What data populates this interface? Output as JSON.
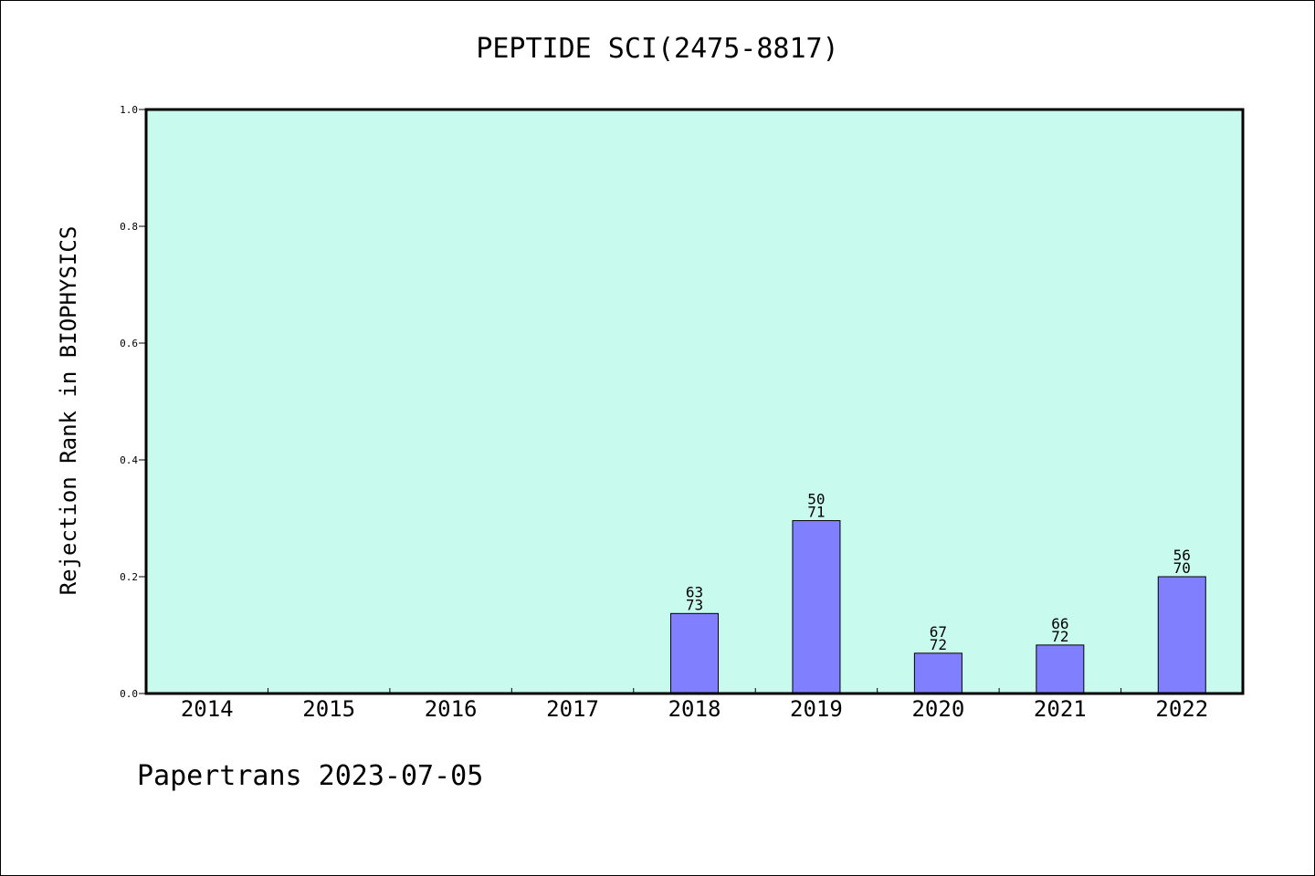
{
  "chart_data": {
    "type": "bar",
    "title": "PEPTIDE SCI(2475-8817)",
    "xlabel": "",
    "ylabel": "Rejection Rank in BIOPHYSICS",
    "categories": [
      "2014",
      "2015",
      "2016",
      "2017",
      "2018",
      "2019",
      "2020",
      "2021",
      "2022"
    ],
    "values": [
      0,
      0,
      0,
      0,
      0.137,
      0.296,
      0.069,
      0.083,
      0.2
    ],
    "labels_top": [
      "",
      "",
      "",
      "",
      "63",
      "50",
      "67",
      "66",
      "56"
    ],
    "labels_bottom": [
      "",
      "",
      "",
      "",
      "73",
      "71",
      "72",
      "72",
      "70"
    ],
    "ylim": [
      0,
      1.0
    ],
    "yticks": [
      "0.0",
      "0.2",
      "0.4",
      "0.6",
      "0.8",
      "1.0"
    ],
    "grid": false,
    "colors": {
      "bar": "#8080ff",
      "plot_bg": "#c8fbee",
      "axis": "#000000"
    }
  },
  "footer": "Papertrans 2023-07-05"
}
